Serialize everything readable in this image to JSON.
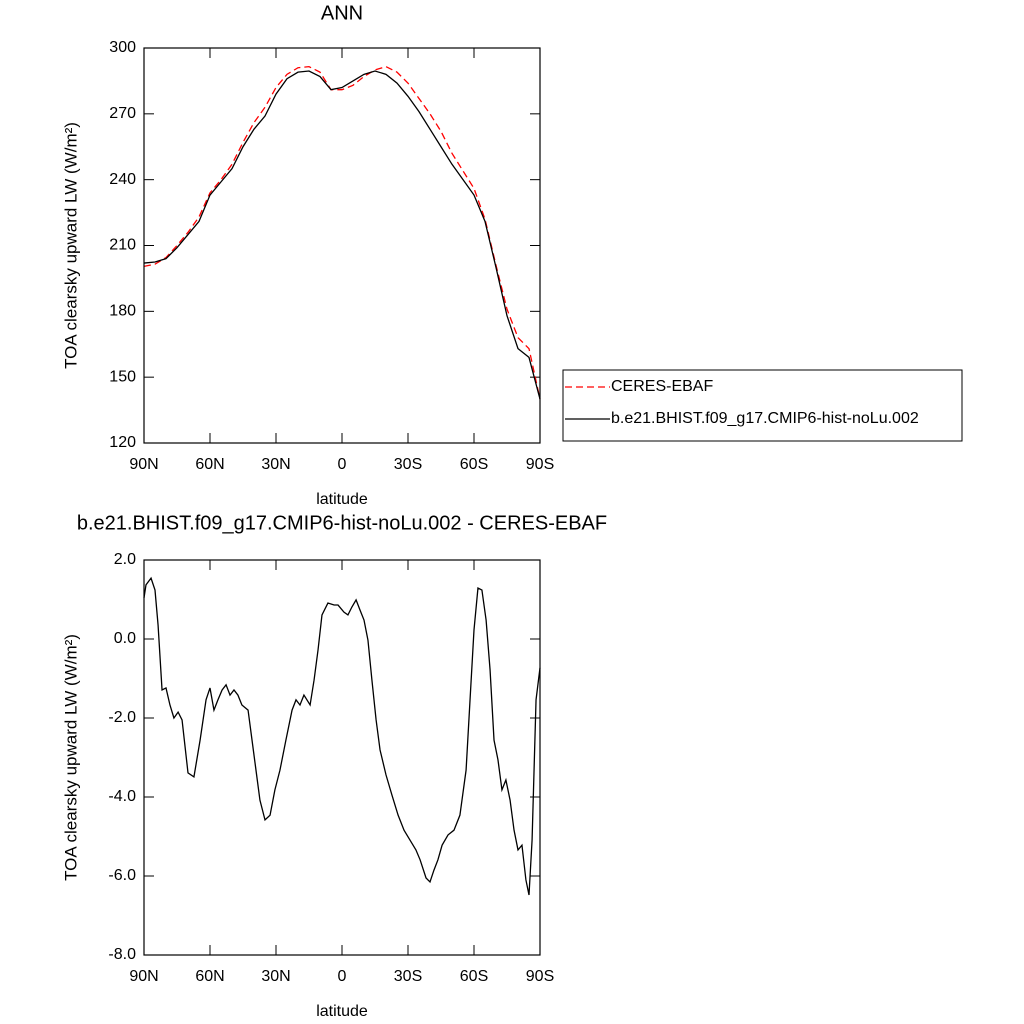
{
  "chart_data": [
    {
      "type": "line",
      "title": "ANN",
      "x_label": "latitude",
      "y_label": "TOA clearsky upward LW (W/m²)",
      "x": [
        90,
        85,
        80,
        75,
        70,
        65,
        60,
        55,
        50,
        45,
        40,
        35,
        30,
        25,
        20,
        15,
        10,
        5,
        0,
        -5,
        -10,
        -15,
        -20,
        -25,
        -30,
        -35,
        -40,
        -45,
        -50,
        -55,
        -60,
        -65,
        -70,
        -75,
        -80,
        -85,
        -90
      ],
      "series": [
        {
          "name": "CERES-EBAF",
          "color": "#ff0000",
          "dash": true,
          "values": [
            200.5,
            201.5,
            204.5,
            210,
            216,
            223,
            234,
            240,
            247,
            257,
            266,
            273,
            282,
            288,
            291,
            291.5,
            289,
            281,
            281,
            283,
            287,
            290,
            291.5,
            289,
            284,
            277,
            270,
            262,
            252,
            244,
            236,
            222,
            201,
            181,
            168,
            163,
            140
          ]
        },
        {
          "name": "b.e21.BHIST.f09_g17.CMIP6-hist-noLu.002",
          "color": "#000000",
          "dash": false,
          "values": [
            202,
            202.5,
            204,
            209,
            215,
            221,
            233,
            239,
            245,
            255,
            263,
            269,
            279,
            286,
            289,
            289.5,
            287,
            281,
            282,
            285,
            288,
            289.5,
            288,
            284,
            278,
            271,
            263,
            255,
            247,
            240,
            233,
            221,
            200,
            178,
            163,
            159,
            140
          ]
        }
      ],
      "xlim": [
        90,
        -90
      ],
      "xticks": [
        {
          "value": 90,
          "label": "90N"
        },
        {
          "value": 60,
          "label": "60N"
        },
        {
          "value": 30,
          "label": "30N"
        },
        0,
        {
          "value": -30,
          "label": "30S"
        },
        {
          "value": -60,
          "label": "60S"
        },
        {
          "value": -90,
          "label": "90S"
        }
      ],
      "ylim": [
        120,
        300
      ],
      "yticks": [
        120,
        150,
        180,
        210,
        240,
        270,
        300
      ],
      "legend": "right"
    },
    {
      "type": "line",
      "title": "b.e21.BHIST.f09_g17.CMIP6-hist-noLu.002 - CERES-EBAF",
      "x_label": "latitude",
      "y_label": "TOA clearsky upward LW (W/m²)",
      "x": [
        90,
        89.1,
        86.8,
        85,
        83.6,
        81.8,
        80,
        78.2,
        76.4,
        74.5,
        72.7,
        70,
        67.3,
        64.5,
        61.8,
        60,
        58.2,
        56.4,
        54.5,
        52.7,
        50.9,
        49.1,
        47.3,
        45.5,
        42.7,
        40.9,
        39.1,
        37.3,
        35,
        32.7,
        30.5,
        28.2,
        25.5,
        22.7,
        20.9,
        19.1,
        17.3,
        14.5,
        12.7,
        10.9,
        9.1,
        6.4,
        3.6,
        1.8,
        -0.9,
        -2.7,
        -4.5,
        -6.4,
        -8.2,
        -10,
        -11.8,
        -13.6,
        -15.5,
        -17.3,
        -20,
        -22.7,
        -25.5,
        -28.2,
        -30.9,
        -33.6,
        -35.5,
        -38.2,
        -40,
        -41.8,
        -43.6,
        -45.5,
        -48.2,
        -50.9,
        -53.6,
        -56.4,
        -58.2,
        -60,
        -61.8,
        -63.6,
        -65.5,
        -67.3,
        -69.1,
        -70.9,
        -72.7,
        -74.5,
        -76.4,
        -78.2,
        -80,
        -81.8,
        -83.6,
        -85,
        -86.4,
        -88.2,
        -90
      ],
      "series": [
        {
          "color": "#000000",
          "dash": false,
          "values": [
            1.04,
            1.37,
            1.54,
            1.24,
            0.35,
            -1.29,
            -1.24,
            -1.67,
            -2.0,
            -1.85,
            -2.05,
            -3.39,
            -3.49,
            -2.56,
            -1.54,
            -1.24,
            -1.8,
            -1.54,
            -1.29,
            -1.16,
            -1.42,
            -1.29,
            -1.42,
            -1.67,
            -1.8,
            -2.56,
            -3.32,
            -4.08,
            -4.58,
            -4.46,
            -3.82,
            -3.32,
            -2.56,
            -1.8,
            -1.54,
            -1.67,
            -1.42,
            -1.67,
            -1.04,
            -0.28,
            0.61,
            0.91,
            0.86,
            0.86,
            0.68,
            0.61,
            0.81,
            0.99,
            0.73,
            0.48,
            -0.03,
            -1.04,
            -2.05,
            -2.81,
            -3.44,
            -3.95,
            -4.46,
            -4.84,
            -5.09,
            -5.34,
            -5.59,
            -6.05,
            -6.15,
            -5.85,
            -5.59,
            -5.22,
            -4.96,
            -4.84,
            -4.46,
            -3.32,
            -1.54,
            0.23,
            1.29,
            1.24,
            0.48,
            -0.78,
            -2.56,
            -3.06,
            -3.82,
            -3.57,
            -4.08,
            -4.84,
            -5.34,
            -5.22,
            -6.1,
            -6.48,
            -5.09,
            -1.54,
            -0.73
          ]
        }
      ],
      "xlim": [
        90,
        -90
      ],
      "xticks": [
        {
          "value": 90,
          "label": "90N"
        },
        {
          "value": 60,
          "label": "60N"
        },
        {
          "value": 30,
          "label": "30N"
        },
        0,
        {
          "value": -30,
          "label": "30S"
        },
        {
          "value": -60,
          "label": "60S"
        },
        {
          "value": -90,
          "label": "90S"
        }
      ],
      "ylim": [
        -8,
        2
      ],
      "yticks": [
        {
          "value": -8,
          "label": "-8.0"
        },
        {
          "value": -6,
          "label": "-6.0"
        },
        {
          "value": -4,
          "label": "-4.0"
        },
        {
          "value": -2,
          "label": "-2.0"
        },
        {
          "value": 0,
          "label": "0.0"
        },
        {
          "value": 2,
          "label": "2.0"
        }
      ]
    }
  ]
}
